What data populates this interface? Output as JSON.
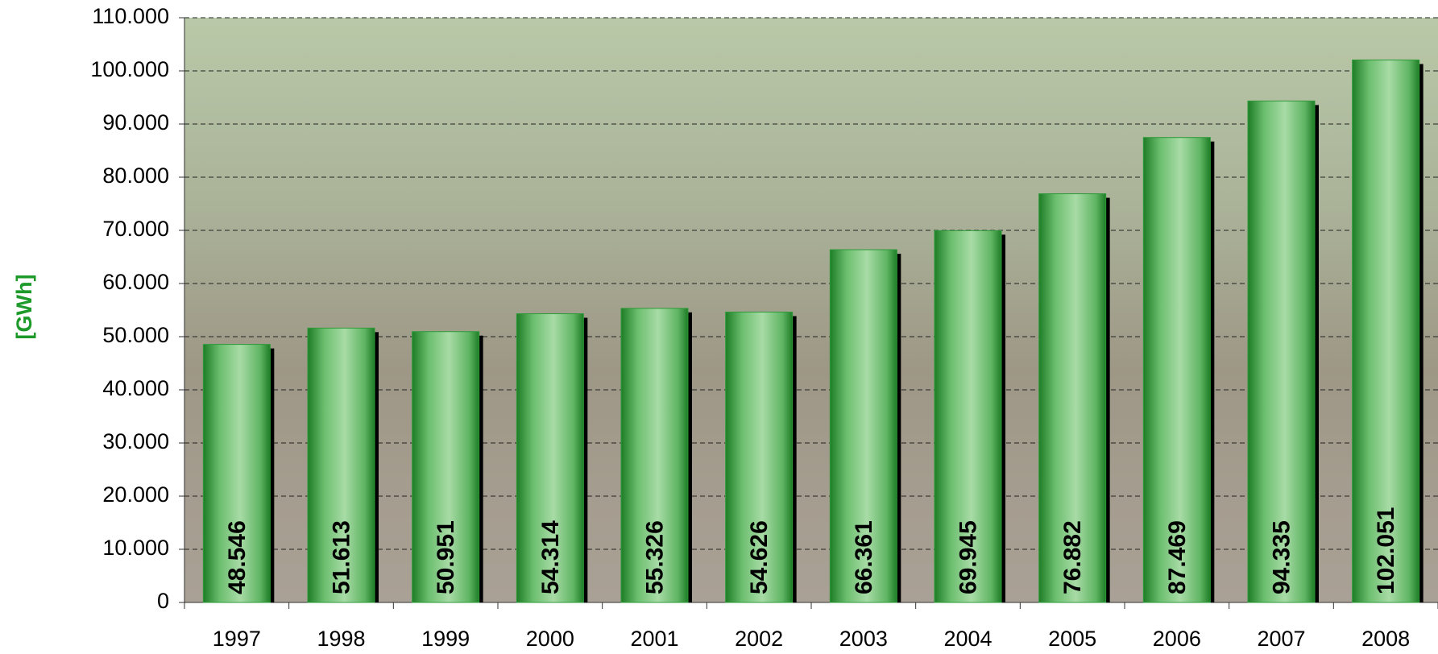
{
  "chart_data": {
    "type": "bar",
    "y_label": "[GWh]",
    "categories": [
      "1997",
      "1998",
      "1999",
      "2000",
      "2001",
      "2002",
      "2003",
      "2004",
      "2005",
      "2006",
      "2007",
      "2008"
    ],
    "values": [
      48546,
      51613,
      50951,
      54314,
      55326,
      54626,
      66361,
      69945,
      76882,
      87469,
      94335,
      102051
    ],
    "value_labels": [
      "48.546",
      "51.613",
      "50.951",
      "54.314",
      "55.326",
      "54.626",
      "66.361",
      "69.945",
      "76.882",
      "87.469",
      "94.335",
      "102.051"
    ],
    "color": "#2e9a3a",
    "ylim": [
      0,
      110000
    ],
    "yticks": [
      0,
      {
        "value": 10000,
        "label": "10.000"
      },
      {
        "value": 20000,
        "label": "20.000"
      },
      {
        "value": 30000,
        "label": "30.000"
      },
      {
        "value": 40000,
        "label": "40.000"
      },
      {
        "value": 50000,
        "label": "50.000"
      },
      {
        "value": 60000,
        "label": "60.000"
      },
      {
        "value": 70000,
        "label": "70.000"
      },
      {
        "value": 80000,
        "label": "80.000"
      },
      {
        "value": 90000,
        "label": "90.000"
      },
      {
        "value": 100000,
        "label": "100.000"
      },
      {
        "value": 110000,
        "label": "110.000"
      }
    ],
    "grid": true
  }
}
